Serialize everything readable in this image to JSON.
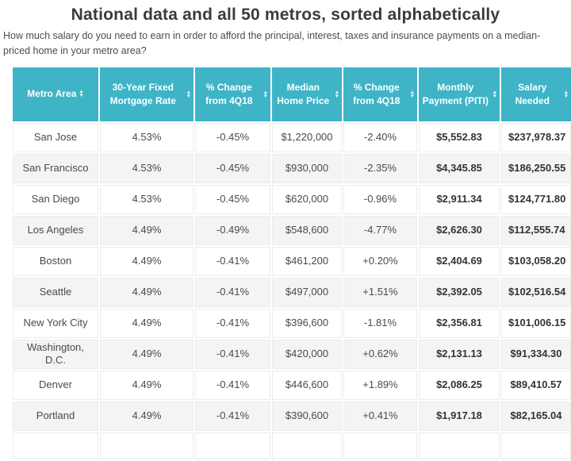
{
  "chart_data": {
    "type": "table",
    "title": "National data and all 50 metros, sorted alphabetically",
    "subtitle": "How much salary do you need to earn in order to afford the principal, interest, taxes and insurance payments on a median-priced home in your metro area?",
    "columns": [
      {
        "id": "metro-area",
        "label": "Metro Area",
        "sortable": true
      },
      {
        "id": "mortgage-rate",
        "label": "30-Year Fixed Mortgage Rate",
        "sortable": true
      },
      {
        "id": "rate-change-4q18",
        "label": "% Change from 4Q18",
        "sortable": true
      },
      {
        "id": "median-home-price",
        "label": "Median Home Price",
        "sortable": true
      },
      {
        "id": "price-change-4q18",
        "label": "% Change from 4Q18",
        "sortable": true
      },
      {
        "id": "monthly-payment-piti",
        "label": "Monthly Payment (PITI)",
        "sortable": true
      },
      {
        "id": "salary-needed",
        "label": "Salary Needed",
        "sortable": true
      }
    ],
    "rows": [
      [
        "San Jose",
        "4.53%",
        "-0.45%",
        "$1,220,000",
        "-2.40%",
        "$5,552.83",
        "$237,978.37"
      ],
      [
        "San Francisco",
        "4.53%",
        "-0.45%",
        "$930,000",
        "-2.35%",
        "$4,345.85",
        "$186,250.55"
      ],
      [
        "San Diego",
        "4.53%",
        "-0.45%",
        "$620,000",
        "-0.96%",
        "$2,911.34",
        "$124,771.80"
      ],
      [
        "Los Angeles",
        "4.49%",
        "-0.49%",
        "$548,600",
        "-4.77%",
        "$2,626.30",
        "$112,555.74"
      ],
      [
        "Boston",
        "4.49%",
        "-0.41%",
        "$461,200",
        "+0.20%",
        "$2,404.69",
        "$103,058.20"
      ],
      [
        "Seattle",
        "4.49%",
        "-0.41%",
        "$497,000",
        "+1.51%",
        "$2,392.05",
        "$102,516.54"
      ],
      [
        "New York City",
        "4.49%",
        "-0.41%",
        "$396,600",
        "-1.81%",
        "$2,356.81",
        "$101,006.15"
      ],
      [
        "Washington, D.C.",
        "4.49%",
        "-0.41%",
        "$420,000",
        "+0.62%",
        "$2,131.13",
        "$91,334.30"
      ],
      [
        "Denver",
        "4.49%",
        "-0.41%",
        "$446,600",
        "+1.89%",
        "$2,086.25",
        "$89,410.57"
      ],
      [
        "Portland",
        "4.49%",
        "-0.41%",
        "$390,600",
        "+0.41%",
        "$1,917.18",
        "$82,165.04"
      ]
    ],
    "layout": {
      "striped_rows": true,
      "bold_columns": [
        "monthly-payment-piti",
        "salary-needed"
      ]
    }
  },
  "icons": {
    "sort_up": "▲",
    "sort_down": "▼"
  },
  "colors": {
    "header_bg": "#3fb4c7",
    "header_text": "#ffffff",
    "row_stripe": "#f4f4f4",
    "cell_border": "#ececec",
    "title_text": "#3b3b3b",
    "body_text": "#4a4a4a"
  }
}
